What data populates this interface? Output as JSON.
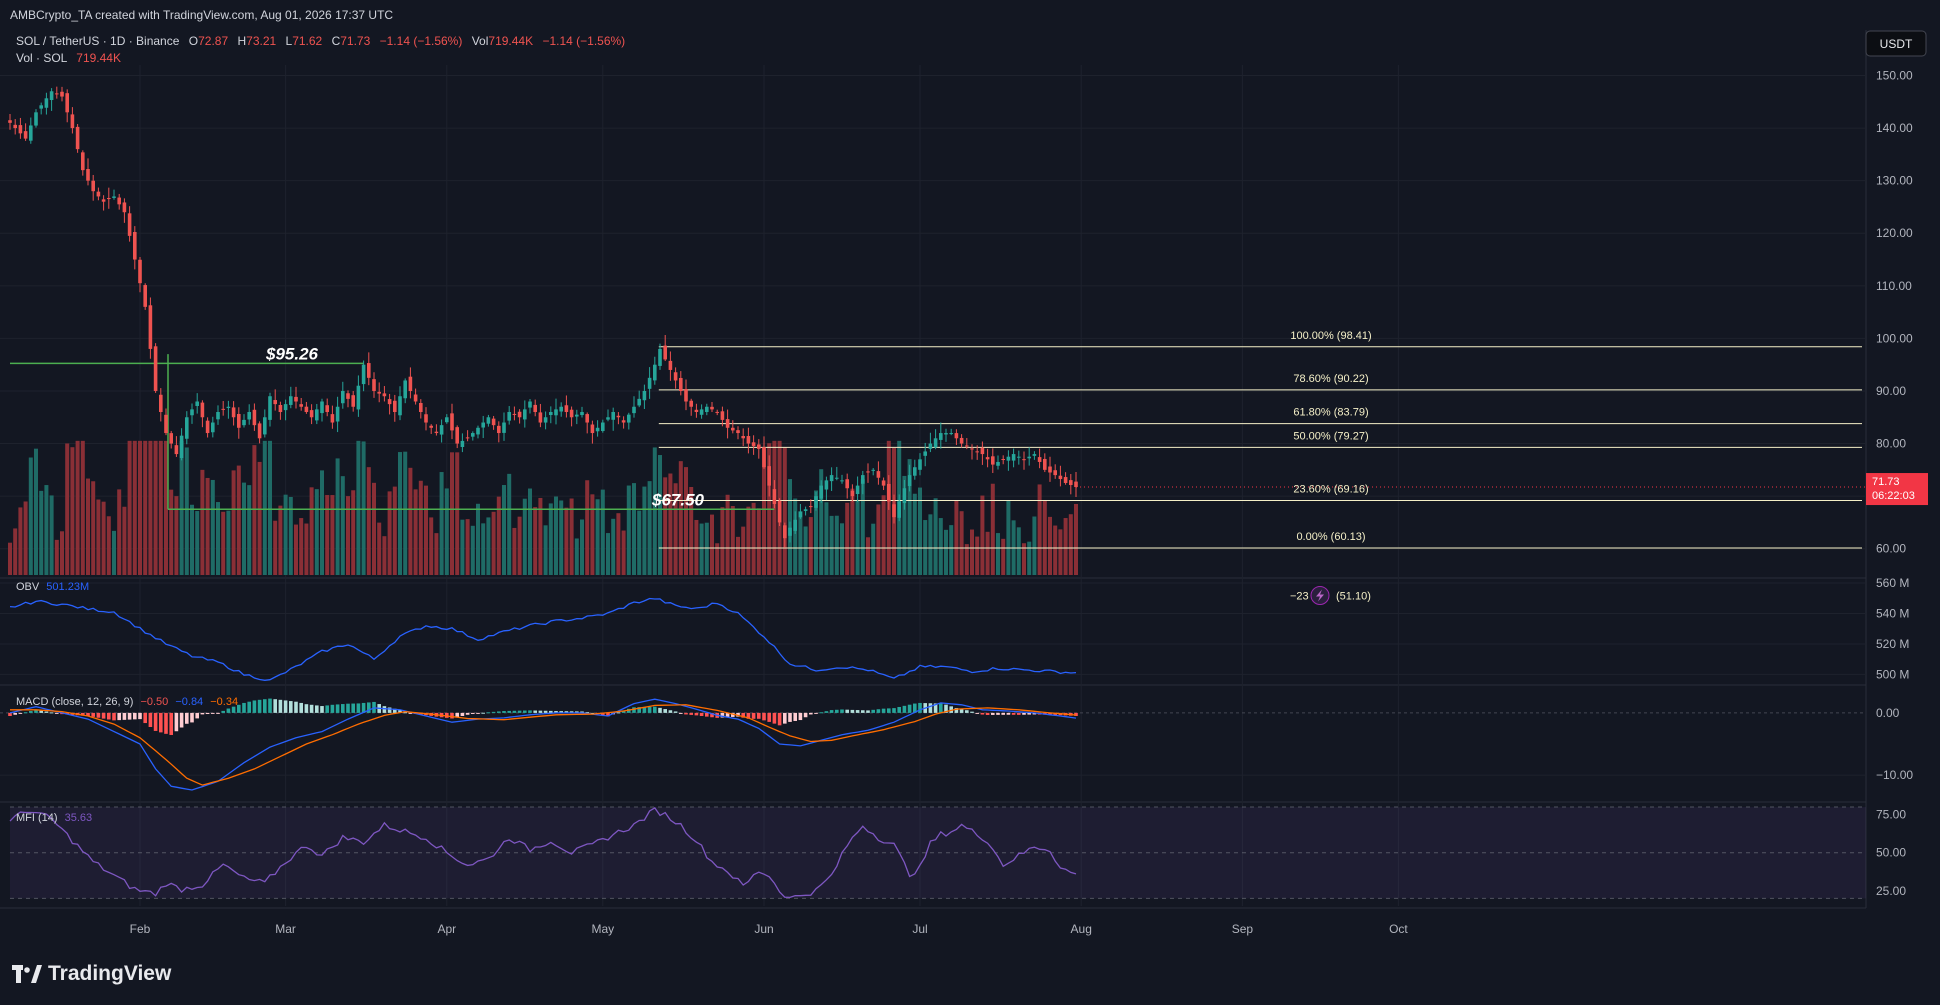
{
  "header": {
    "caption": "AMBCrypto_TA created with TradingView.com, Aug 01, 2026 17:37 UTC"
  },
  "legend": {
    "symbol": "SOL / TetherUS · 1D · Binance",
    "o_label": "O",
    "o_value": "72.87",
    "h_label": "H",
    "h_value": "73.21",
    "l_label": "L",
    "l_value": "71.62",
    "c_label": "C",
    "c_value": "71.73",
    "change": "−1.14 (−1.56%)",
    "vol_label": "Vol",
    "vol_value": "719.44K",
    "vol_change": "−1.14 (−1.56%)",
    "vol_series": "Vol · SOL",
    "vol_series_value": "719.44K"
  },
  "currency_button": "USDT",
  "last_price": {
    "value": "71.73",
    "countdown": "06:22:03"
  },
  "brand": "TradingView",
  "colors": {
    "up": "#26a69a",
    "down": "#ef5350",
    "obv": "#2962ff",
    "macd": "#2962ff",
    "signal": "#ff6d00",
    "mfi": "#7e57c2",
    "fib": "#f5f0c8",
    "support": "#4caf50",
    "bg": "#131722"
  },
  "chart_data": [
    {
      "type": "candlestick",
      "name": "SOL / TetherUS",
      "yticks": [
        "150.00",
        "140.00",
        "130.00",
        "120.00",
        "110.00",
        "100.00",
        "90.00",
        "80.00",
        "70.00",
        "60.00"
      ],
      "ylim": [
        55,
        152
      ],
      "xticks": [
        {
          "label": "Feb",
          "day": 25
        },
        {
          "label": "Mar",
          "day": 53
        },
        {
          "label": "Apr",
          "day": 84
        },
        {
          "label": "May",
          "day": 114
        },
        {
          "label": "Jun",
          "day": 145
        },
        {
          "label": "Jul",
          "day": 175
        },
        {
          "label": "Aug",
          "day": 206
        },
        {
          "label": "Sep",
          "day": 237
        },
        {
          "label": "Oct",
          "day": 267
        }
      ],
      "anchors": [
        [
          0,
          141
        ],
        [
          3,
          138
        ],
        [
          5,
          143
        ],
        [
          8,
          147
        ],
        [
          10,
          146
        ],
        [
          12,
          140
        ],
        [
          14,
          132
        ],
        [
          16,
          128
        ],
        [
          18,
          126
        ],
        [
          20,
          127
        ],
        [
          22,
          124
        ],
        [
          24,
          115
        ],
        [
          26,
          106
        ],
        [
          28,
          90
        ],
        [
          30,
          82
        ],
        [
          32,
          78
        ],
        [
          34,
          85
        ],
        [
          36,
          88
        ],
        [
          38,
          82
        ],
        [
          40,
          86
        ],
        [
          42,
          87
        ],
        [
          44,
          83
        ],
        [
          46,
          86
        ],
        [
          48,
          81
        ],
        [
          50,
          89
        ],
        [
          52,
          86
        ],
        [
          54,
          89
        ],
        [
          56,
          87
        ],
        [
          58,
          85
        ],
        [
          60,
          88
        ],
        [
          62,
          84
        ],
        [
          64,
          90
        ],
        [
          66,
          87
        ],
        [
          68,
          95
        ],
        [
          70,
          90
        ],
        [
          72,
          89
        ],
        [
          74,
          86
        ],
        [
          76,
          92
        ],
        [
          78,
          88
        ],
        [
          80,
          84
        ],
        [
          82,
          82
        ],
        [
          84,
          85
        ],
        [
          86,
          80
        ],
        [
          88,
          81
        ],
        [
          90,
          83
        ],
        [
          92,
          85
        ],
        [
          94,
          82
        ],
        [
          96,
          86
        ],
        [
          98,
          85
        ],
        [
          100,
          88
        ],
        [
          102,
          84
        ],
        [
          104,
          86
        ],
        [
          106,
          87
        ],
        [
          108,
          85
        ],
        [
          110,
          86
        ],
        [
          112,
          82
        ],
        [
          114,
          84
        ],
        [
          116,
          86
        ],
        [
          118,
          84
        ],
        [
          120,
          87
        ],
        [
          122,
          90
        ],
        [
          124,
          95
        ],
        [
          125,
          98
        ],
        [
          126,
          96
        ],
        [
          128,
          92
        ],
        [
          130,
          88
        ],
        [
          132,
          86
        ],
        [
          134,
          87
        ],
        [
          136,
          86
        ],
        [
          138,
          83
        ],
        [
          140,
          82
        ],
        [
          142,
          80
        ],
        [
          144,
          79
        ],
        [
          146,
          72
        ],
        [
          148,
          65
        ],
        [
          149,
          62
        ],
        [
          150,
          64
        ],
        [
          152,
          67
        ],
        [
          154,
          68
        ],
        [
          156,
          72
        ],
        [
          158,
          74
        ],
        [
          160,
          73
        ],
        [
          162,
          70
        ],
        [
          164,
          74
        ],
        [
          166,
          75
        ],
        [
          168,
          72
        ],
        [
          170,
          66
        ],
        [
          171,
          69
        ],
        [
          173,
          74
        ],
        [
          175,
          77
        ],
        [
          177,
          80
        ],
        [
          179,
          82
        ],
        [
          181,
          82
        ],
        [
          183,
          80
        ],
        [
          185,
          79
        ],
        [
          187,
          78
        ],
        [
          189,
          76
        ],
        [
          191,
          77
        ],
        [
          193,
          78
        ],
        [
          195,
          77
        ],
        [
          197,
          78
        ],
        [
          199,
          75
        ],
        [
          201,
          74
        ],
        [
          203,
          72.5
        ],
        [
          205,
          71.73
        ]
      ],
      "volume_ylim": [
        0,
        1200
      ],
      "fib_levels": [
        {
          "label": "100.00% (98.41)",
          "value": 98.41
        },
        {
          "label": "78.60% (90.22)",
          "value": 90.22
        },
        {
          "label": "61.80% (83.79)",
          "value": 83.79
        },
        {
          "label": "50.00% (79.27)",
          "value": 79.27
        },
        {
          "label": "23.60% (69.16)",
          "value": 69.16
        },
        {
          "label": "0.00% (60.13)",
          "value": 60.13
        }
      ],
      "fib_extra": {
        "prefix": "−23",
        "label": "(51.10)",
        "value": 51.1
      },
      "fib_start_day": 124,
      "support_lines": [
        {
          "label": "$95.26",
          "value": 95.26,
          "from": 0,
          "to": 68
        },
        {
          "label": "$67.50",
          "value": 67.5,
          "from": 30,
          "to": 147
        }
      ]
    },
    {
      "type": "line",
      "name": "OBV",
      "value": "501.23M",
      "yticks": [
        "560 M",
        "540 M",
        "520 M",
        "500 M"
      ],
      "ylim": [
        495,
        562
      ],
      "anchors": [
        [
          0,
          544
        ],
        [
          5,
          548
        ],
        [
          10,
          546
        ],
        [
          15,
          543
        ],
        [
          20,
          541
        ],
        [
          25,
          530
        ],
        [
          30,
          520
        ],
        [
          35,
          512
        ],
        [
          40,
          508
        ],
        [
          45,
          500
        ],
        [
          50,
          496
        ],
        [
          55,
          505
        ],
        [
          60,
          515
        ],
        [
          65,
          520
        ],
        [
          70,
          510
        ],
        [
          75,
          525
        ],
        [
          80,
          532
        ],
        [
          85,
          530
        ],
        [
          90,
          523
        ],
        [
          95,
          528
        ],
        [
          100,
          532
        ],
        [
          105,
          535
        ],
        [
          110,
          537
        ],
        [
          115,
          540
        ],
        [
          120,
          547
        ],
        [
          124,
          550
        ],
        [
          128,
          545
        ],
        [
          132,
          543
        ],
        [
          136,
          547
        ],
        [
          140,
          540
        ],
        [
          145,
          525
        ],
        [
          150,
          507
        ],
        [
          155,
          503
        ],
        [
          160,
          505
        ],
        [
          165,
          503
        ],
        [
          170,
          497
        ],
        [
          175,
          505
        ],
        [
          180,
          505
        ],
        [
          185,
          502
        ],
        [
          190,
          504
        ],
        [
          195,
          503
        ],
        [
          200,
          502
        ],
        [
          205,
          501
        ]
      ]
    },
    {
      "type": "macd",
      "name": "MACD (close, 12, 26, 9)",
      "values": {
        "histogram": "−0.50",
        "macd": "−0.84",
        "signal": "−0.34"
      },
      "yticks": [
        "0.00",
        "−10.00"
      ],
      "ylim": [
        -14,
        4
      ],
      "macd_anchors": [
        [
          0,
          0
        ],
        [
          5,
          1
        ],
        [
          10,
          0
        ],
        [
          15,
          -1
        ],
        [
          20,
          -3
        ],
        [
          25,
          -5
        ],
        [
          28,
          -9
        ],
        [
          31,
          -11.8
        ],
        [
          35,
          -12.4
        ],
        [
          40,
          -11
        ],
        [
          45,
          -8
        ],
        [
          50,
          -5.5
        ],
        [
          55,
          -4
        ],
        [
          60,
          -3
        ],
        [
          65,
          -1
        ],
        [
          70,
          0.8
        ],
        [
          75,
          0.5
        ],
        [
          80,
          -0.5
        ],
        [
          85,
          -1.5
        ],
        [
          90,
          -1
        ],
        [
          95,
          -0.8
        ],
        [
          100,
          -0.3
        ],
        [
          105,
          0
        ],
        [
          110,
          0
        ],
        [
          115,
          -0.5
        ],
        [
          120,
          1.5
        ],
        [
          124,
          2.2
        ],
        [
          128,
          1.5
        ],
        [
          132,
          0.6
        ],
        [
          136,
          -0.4
        ],
        [
          140,
          -1
        ],
        [
          144,
          -2.5
        ],
        [
          148,
          -5
        ],
        [
          152,
          -5.3
        ],
        [
          156,
          -4.4
        ],
        [
          160,
          -3.5
        ],
        [
          165,
          -2.8
        ],
        [
          170,
          -1.5
        ],
        [
          175,
          0.5
        ],
        [
          179,
          1.6
        ],
        [
          183,
          1.3
        ],
        [
          187,
          0.5
        ],
        [
          192,
          0.3
        ],
        [
          197,
          0
        ],
        [
          202,
          -0.5
        ],
        [
          205,
          -0.84
        ]
      ],
      "signal_anchors": [
        [
          0,
          0.5
        ],
        [
          5,
          0.5
        ],
        [
          10,
          0.2
        ],
        [
          15,
          -0.5
        ],
        [
          20,
          -1.8
        ],
        [
          25,
          -4
        ],
        [
          30,
          -7.5
        ],
        [
          34,
          -10.5
        ],
        [
          37,
          -11.6
        ],
        [
          42,
          -10.5
        ],
        [
          47,
          -9
        ],
        [
          52,
          -7
        ],
        [
          57,
          -5
        ],
        [
          62,
          -3.5
        ],
        [
          67,
          -1.8
        ],
        [
          72,
          -0.4
        ],
        [
          76,
          0.2
        ],
        [
          82,
          -0.3
        ],
        [
          88,
          -0.9
        ],
        [
          95,
          -1.1
        ],
        [
          100,
          -0.7
        ],
        [
          105,
          -0.3
        ],
        [
          112,
          -0.2
        ],
        [
          118,
          0.3
        ],
        [
          124,
          1.2
        ],
        [
          130,
          1.3
        ],
        [
          136,
          0.4
        ],
        [
          142,
          -0.8
        ],
        [
          146,
          -2.3
        ],
        [
          150,
          -3.7
        ],
        [
          154,
          -4.6
        ],
        [
          158,
          -4.4
        ],
        [
          162,
          -3.7
        ],
        [
          168,
          -2.7
        ],
        [
          174,
          -1.4
        ],
        [
          178,
          -0.2
        ],
        [
          182,
          0.6
        ],
        [
          188,
          0.8
        ],
        [
          194,
          0.5
        ],
        [
          200,
          0
        ],
        [
          205,
          -0.34
        ]
      ]
    },
    {
      "type": "line",
      "name": "MFI (14)",
      "value": "35.63",
      "yticks": [
        "75.00",
        "50.00",
        "25.00"
      ],
      "ylim": [
        15,
        82
      ],
      "bands": [
        80,
        50,
        20
      ],
      "anchors": [
        [
          0,
          72
        ],
        [
          4,
          78
        ],
        [
          8,
          72
        ],
        [
          12,
          58
        ],
        [
          16,
          44
        ],
        [
          20,
          35
        ],
        [
          24,
          26
        ],
        [
          28,
          23
        ],
        [
          30,
          30
        ],
        [
          33,
          26
        ],
        [
          37,
          29
        ],
        [
          41,
          42
        ],
        [
          45,
          33
        ],
        [
          49,
          30
        ],
        [
          53,
          44
        ],
        [
          57,
          55
        ],
        [
          60,
          48
        ],
        [
          64,
          60
        ],
        [
          68,
          57
        ],
        [
          72,
          68
        ],
        [
          76,
          64
        ],
        [
          80,
          60
        ],
        [
          84,
          50
        ],
        [
          88,
          42
        ],
        [
          92,
          46
        ],
        [
          96,
          60
        ],
        [
          100,
          52
        ],
        [
          104,
          58
        ],
        [
          108,
          50
        ],
        [
          112,
          55
        ],
        [
          116,
          62
        ],
        [
          120,
          68
        ],
        [
          124,
          78
        ],
        [
          126,
          75
        ],
        [
          129,
          68
        ],
        [
          132,
          58
        ],
        [
          135,
          44
        ],
        [
          138,
          38
        ],
        [
          141,
          28
        ],
        [
          144,
          38
        ],
        [
          146,
          35
        ],
        [
          148,
          25
        ],
        [
          150,
          20
        ],
        [
          152,
          22
        ],
        [
          155,
          25
        ],
        [
          158,
          35
        ],
        [
          161,
          55
        ],
        [
          164,
          68
        ],
        [
          167,
          60
        ],
        [
          170,
          55
        ],
        [
          173,
          36
        ],
        [
          175,
          40
        ],
        [
          177,
          56
        ],
        [
          179,
          62
        ],
        [
          181,
          64
        ],
        [
          183,
          68
        ],
        [
          186,
          62
        ],
        [
          188,
          58
        ],
        [
          191,
          42
        ],
        [
          194,
          48
        ],
        [
          197,
          54
        ],
        [
          200,
          52
        ],
        [
          202,
          40
        ],
        [
          205,
          35.63
        ]
      ]
    }
  ]
}
